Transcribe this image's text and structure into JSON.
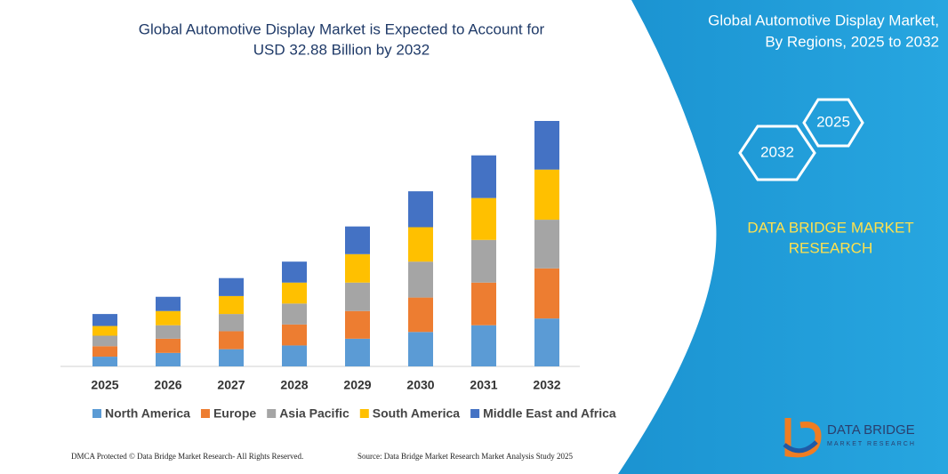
{
  "chart_data": {
    "type": "stacked_bar",
    "title": [
      "Global Automotive Display Market is Expected to Account for",
      "USD 32.88 Billion by 2032"
    ],
    "categories": [
      "2025",
      "2026",
      "2027",
      "2028",
      "2029",
      "2030",
      "2031",
      "2032"
    ],
    "series": [
      {
        "name": "North America",
        "color": "#5b9bd5",
        "values": [
          1.3,
          1.8,
          2.3,
          2.8,
          3.7,
          4.6,
          5.5,
          6.4
        ]
      },
      {
        "name": "Europe",
        "color": "#ed7d31",
        "values": [
          1.4,
          1.9,
          2.4,
          2.8,
          3.7,
          4.6,
          5.7,
          6.7
        ]
      },
      {
        "name": "Asia Pacific",
        "color": "#a5a5a5",
        "values": [
          1.4,
          1.8,
          2.3,
          2.8,
          3.8,
          4.8,
          5.7,
          6.5
        ]
      },
      {
        "name": "South America",
        "color": "#ffc000",
        "values": [
          1.3,
          1.9,
          2.4,
          2.8,
          3.8,
          4.6,
          5.6,
          6.7
        ]
      },
      {
        "name": "Middle East and Africa",
        "color": "#4472c4",
        "values": [
          1.6,
          1.9,
          2.4,
          2.8,
          3.7,
          4.8,
          5.7,
          6.5
        ]
      }
    ],
    "legend": "bottom"
  },
  "panel": {
    "title": [
      "Global Automotive Display Market,",
      "By Regions, 2025 to 2032"
    ],
    "hexagons": [
      "2025",
      "2032"
    ],
    "brand": [
      "DATA BRIDGE MARKET",
      "RESEARCH"
    ]
  },
  "logo": {
    "name": "DATA BRIDGE",
    "tagline": "MARKET RESEARCH"
  },
  "footer": {
    "left": "DMCA Protected © Data Bridge Market Research- All Rights Reserved.",
    "right": "Source: Data Bridge Market Research Market Analysis Study 2025"
  }
}
